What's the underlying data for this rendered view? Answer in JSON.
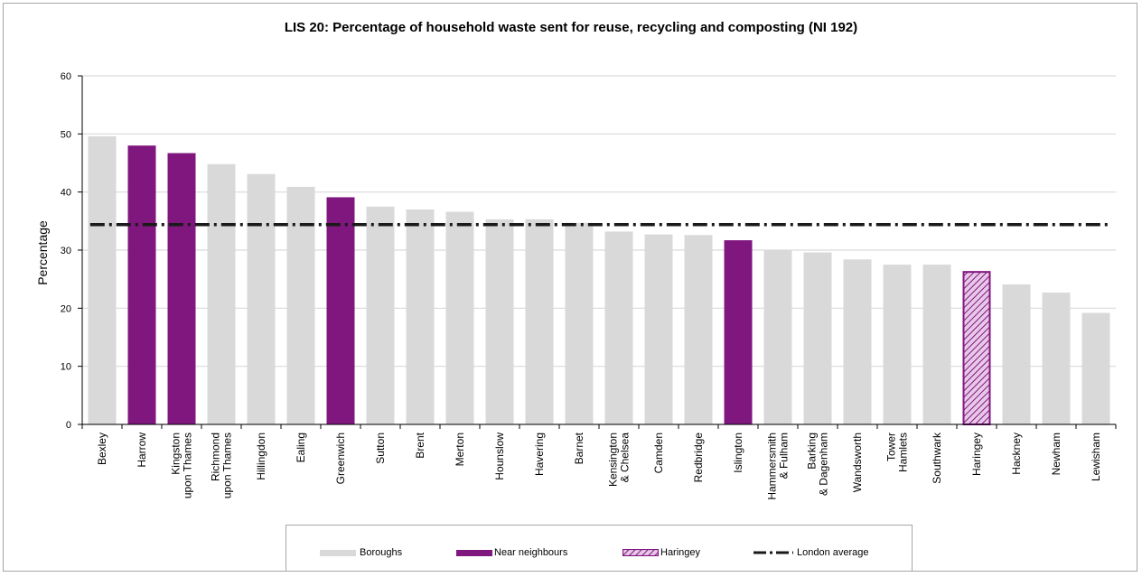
{
  "chart_data": {
    "type": "bar",
    "title": "LIS 20: Percentage of household waste sent for reuse, recycling and composting (NI 192)",
    "ylabel": "Percentage",
    "xlabel": "",
    "ylim": [
      0,
      60
    ],
    "yticks": [
      0,
      10,
      20,
      30,
      40,
      50,
      60
    ],
    "grid": true,
    "legend_position": "bottom",
    "categories": [
      "Bexley",
      "Harrow",
      "Kingston\nupon Thames",
      "Richmond\nupon Thames",
      "Hillingdon",
      "Ealing",
      "Greenwich",
      "Sutton",
      "Brent",
      "Merton",
      "Hounslow",
      "Havering",
      "Barnet",
      "Kensington\n& Chelsea",
      "Camden",
      "Redbridge",
      "Islington",
      "Hammersmith\n& Fulham",
      "Barking\n& Dagenham",
      "Wandsworth",
      "Tower\nHamlets",
      "Southwark",
      "Haringey",
      "Hackney",
      "Newham",
      "Lewisham"
    ],
    "values": [
      49.6,
      48.0,
      46.7,
      44.8,
      43.1,
      40.9,
      39.1,
      37.5,
      37.0,
      36.6,
      35.3,
      35.3,
      34.7,
      33.2,
      32.7,
      32.6,
      31.7,
      30.0,
      29.6,
      28.4,
      27.5,
      27.5,
      26.4,
      24.1,
      22.7,
      19.2
    ],
    "groups": [
      "Boroughs",
      "Near neighbours",
      "Near neighbours",
      "Boroughs",
      "Boroughs",
      "Boroughs",
      "Near neighbours",
      "Boroughs",
      "Boroughs",
      "Boroughs",
      "Boroughs",
      "Boroughs",
      "Boroughs",
      "Boroughs",
      "Boroughs",
      "Boroughs",
      "Near neighbours",
      "Boroughs",
      "Boroughs",
      "Boroughs",
      "Boroughs",
      "Boroughs",
      "Haringey",
      "Boroughs",
      "Boroughs",
      "Boroughs"
    ],
    "london_average": 34.4,
    "legend": [
      "Boroughs",
      "Near neighbours",
      "Haringey",
      "London average"
    ],
    "colors": {
      "Boroughs": "#d9d9d9",
      "Near neighbours": "#80177f",
      "Haringey": "#80177f",
      "London average": "#1a1a1a",
      "grid": "#d9d9d9"
    }
  }
}
